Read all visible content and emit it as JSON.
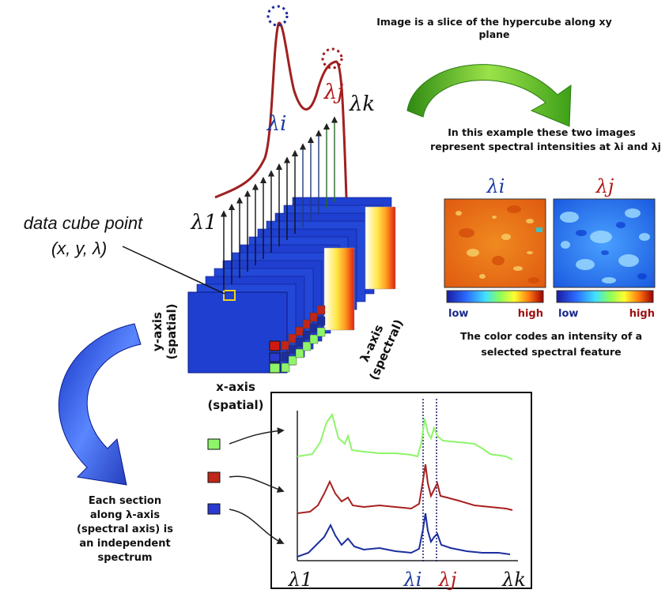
{
  "top_caption": {
    "line1": "Image is a slice of the hypercube along xy",
    "line2": "plane"
  },
  "example_caption": {
    "line1": "In this example these two images",
    "line2": "represent spectral intensities at λi and λj"
  },
  "image_labels": {
    "left": "λi",
    "right": "λj"
  },
  "colorbar": {
    "low": "low",
    "high": "high"
  },
  "color_caption": {
    "line1": "The color codes an intensity of a",
    "line2": "selected spectral feature"
  },
  "data_cube_point": {
    "line1": "data cube point",
    "line2": "(x, y, λ)"
  },
  "axes": {
    "y_axis": {
      "line1": "y-axis",
      "line2": "(spatial)"
    },
    "x_axis": {
      "line1": "x-axis",
      "line2": "(spatial)"
    },
    "lambda_axis": {
      "line1": "λ-axis",
      "line2": "(spectral)"
    }
  },
  "spectrum_labels": {
    "l1": "λ1",
    "li": "λi",
    "lj": "λj",
    "lk": "λk"
  },
  "section_caption": [
    "Each section",
    "along λ-axis",
    "(spectral axis) is",
    "an independent",
    "spectrum"
  ],
  "colors": {
    "green": "#8ef56a",
    "red": "#c0261a",
    "blue": "#1c2e9e",
    "cube": "#1f3fd0",
    "arrow": "#4aa0e8",
    "curve_arrow": "#2a50e0"
  }
}
